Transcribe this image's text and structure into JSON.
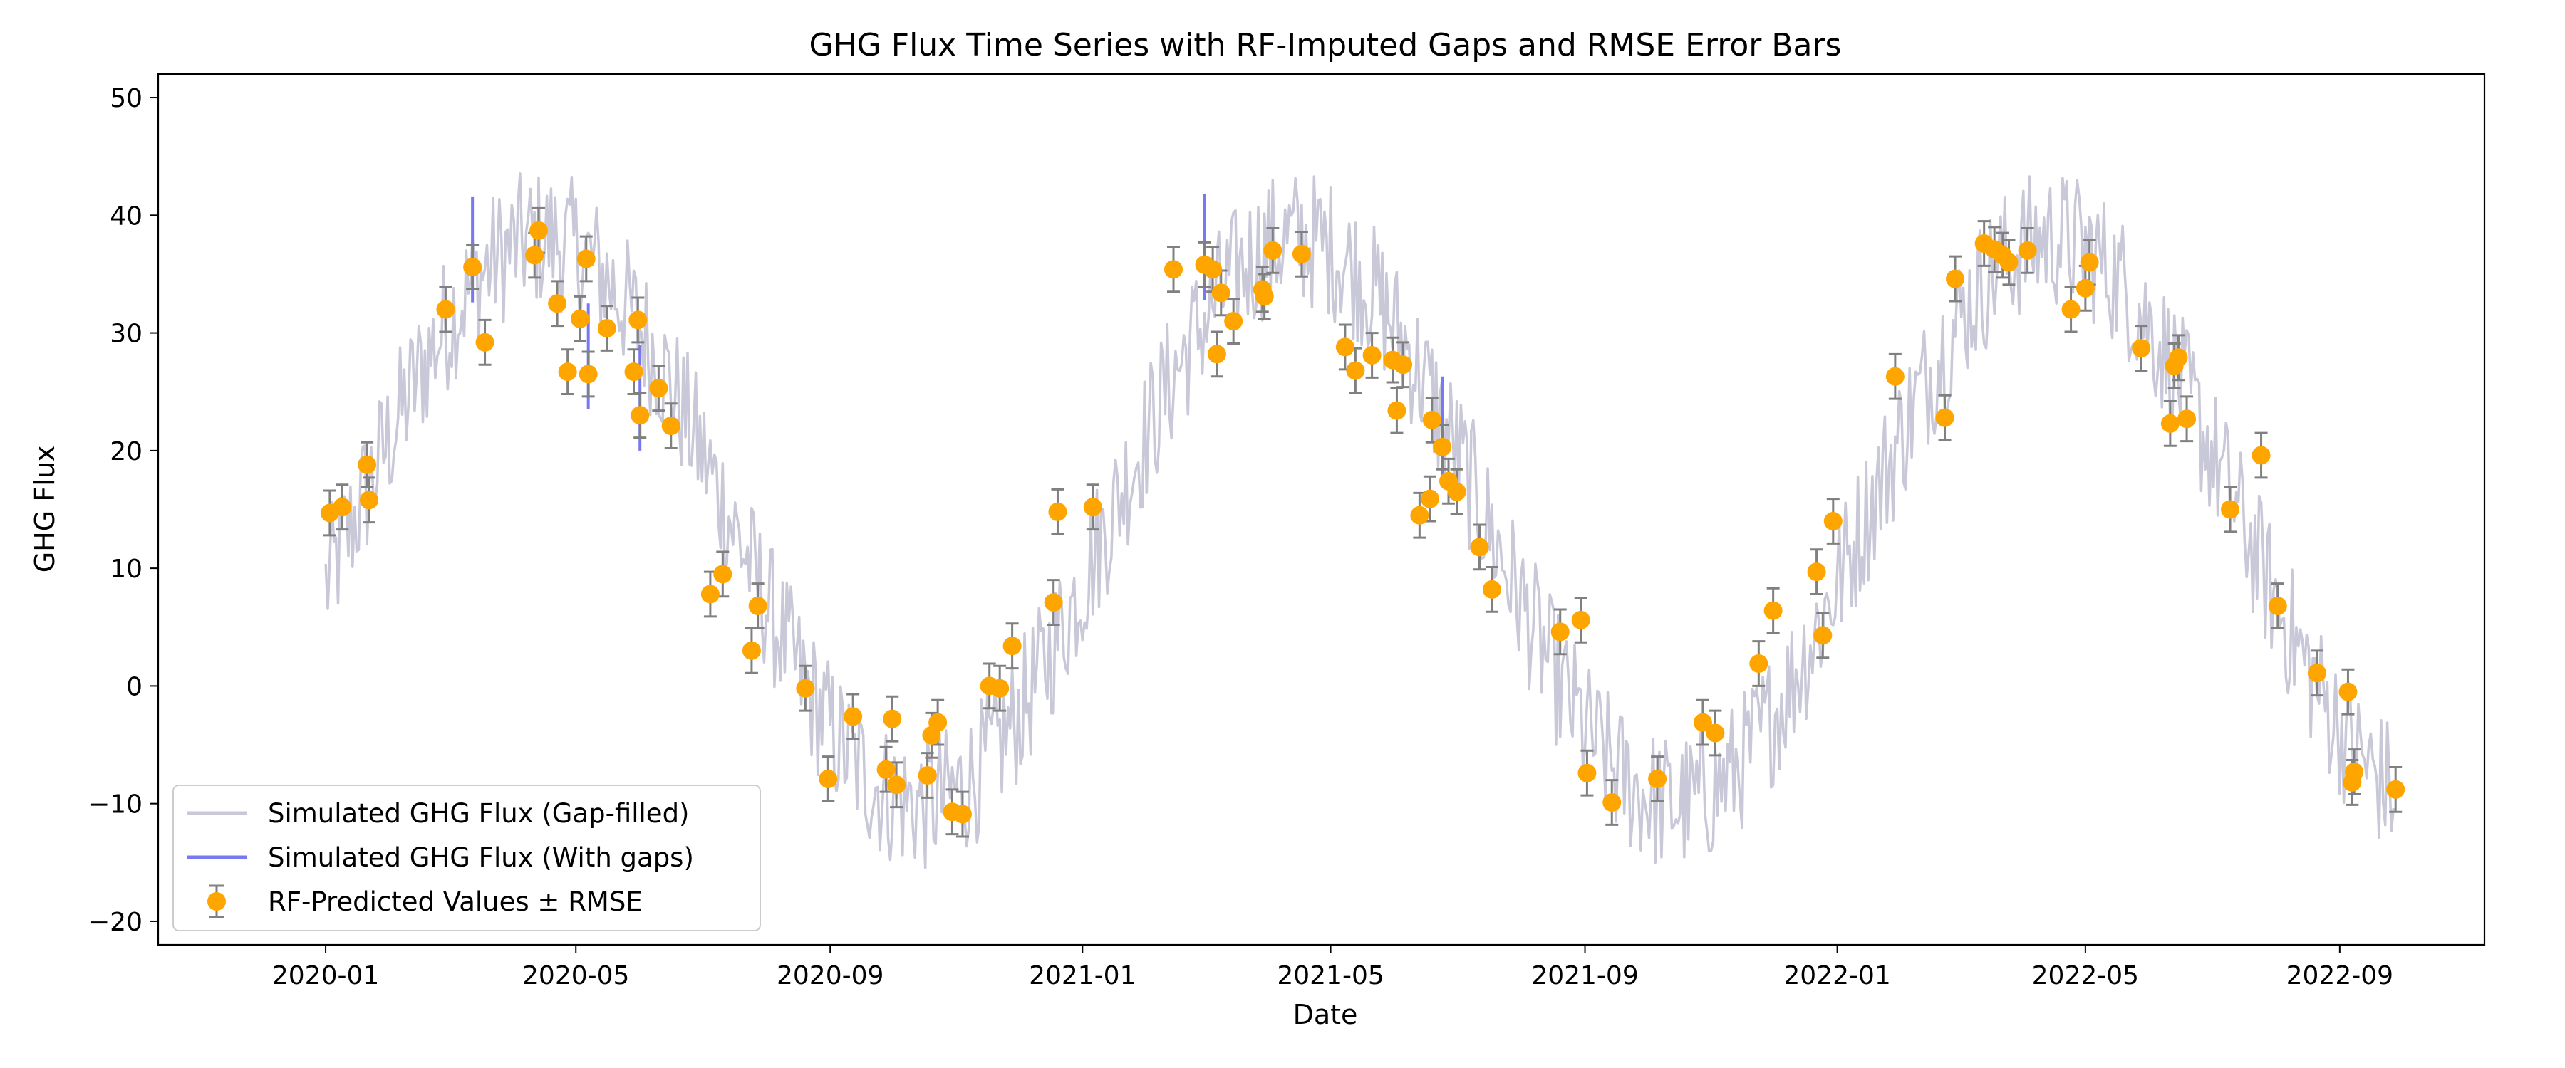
{
  "chart_data": {
    "type": "line",
    "title": "GHG Flux Time Series with RF-Imputed Gaps and RMSE Error Bars",
    "xlabel": "Date",
    "ylabel": "GHG Flux",
    "xlim": [
      "2019-10-12",
      "2022-11-10"
    ],
    "ylim": [
      -22,
      52
    ],
    "x_ticks": [
      "2020-01",
      "2020-05",
      "2020-09",
      "2021-01",
      "2021-05",
      "2021-09",
      "2022-01",
      "2022-05",
      "2022-09"
    ],
    "y_ticks": [
      -20,
      -10,
      0,
      10,
      20,
      30,
      40,
      50
    ],
    "legend_position": "lower-left",
    "colors": {
      "gap_filled": "#c8c8d8",
      "with_gaps": "#7878f0",
      "rf_points": "#ffa500",
      "error_bars": "#808080"
    },
    "series": [
      {
        "name": "Simulated GHG Flux (Gap-filled)",
        "kind": "line",
        "start_date": "2020-01-01",
        "end_date": "2022-09-27",
        "seasonal_mean": 14,
        "seasonal_amplitude": 24,
        "noise_amplitude": 6,
        "peak_month": "2021-04"
      },
      {
        "name": "Simulated GHG Flux (With gaps)",
        "kind": "line"
      },
      {
        "name": "RF-Predicted Values ± RMSE",
        "kind": "errorbar",
        "rmse": 1.9,
        "points": [
          [
            "2020-01-03",
            14.7
          ],
          [
            "2020-01-09",
            15.2
          ],
          [
            "2020-01-21",
            18.8
          ],
          [
            "2020-01-22",
            15.8
          ],
          [
            "2020-02-28",
            32.0
          ],
          [
            "2020-03-12",
            35.6
          ],
          [
            "2020-03-18",
            29.2
          ],
          [
            "2020-04-11",
            36.6
          ],
          [
            "2020-04-13",
            38.7
          ],
          [
            "2020-04-22",
            32.5
          ],
          [
            "2020-04-27",
            26.7
          ],
          [
            "2020-05-03",
            31.2
          ],
          [
            "2020-05-06",
            36.3
          ],
          [
            "2020-05-07",
            26.5
          ],
          [
            "2020-05-16",
            30.4
          ],
          [
            "2020-05-29",
            26.7
          ],
          [
            "2020-05-31",
            31.1
          ],
          [
            "2020-06-01",
            23.0
          ],
          [
            "2020-06-10",
            25.3
          ],
          [
            "2020-06-16",
            22.1
          ],
          [
            "2020-07-05",
            7.8
          ],
          [
            "2020-07-11",
            9.5
          ],
          [
            "2020-07-25",
            3.0
          ],
          [
            "2020-07-28",
            6.8
          ],
          [
            "2020-08-20",
            -0.2
          ],
          [
            "2020-08-31",
            -7.9
          ],
          [
            "2020-09-12",
            -2.6
          ],
          [
            "2020-09-28",
            -7.1
          ],
          [
            "2020-10-01",
            -2.8
          ],
          [
            "2020-10-03",
            -8.4
          ],
          [
            "2020-10-18",
            -7.6
          ],
          [
            "2020-10-20",
            -4.2
          ],
          [
            "2020-10-23",
            -3.1
          ],
          [
            "2020-10-30",
            -10.7
          ],
          [
            "2020-11-04",
            -10.9
          ],
          [
            "2020-11-17",
            0.0
          ],
          [
            "2020-11-22",
            -0.2
          ],
          [
            "2020-11-28",
            3.4
          ],
          [
            "2020-12-18",
            7.1
          ],
          [
            "2020-12-20",
            14.8
          ],
          [
            "2021-01-06",
            15.2
          ],
          [
            "2021-02-14",
            35.4
          ],
          [
            "2021-03-01",
            35.8
          ],
          [
            "2021-03-05",
            35.4
          ],
          [
            "2021-03-07",
            28.2
          ],
          [
            "2021-03-09",
            33.4
          ],
          [
            "2021-03-15",
            31.0
          ],
          [
            "2021-03-29",
            33.7
          ],
          [
            "2021-03-30",
            33.1
          ],
          [
            "2021-04-03",
            37.0
          ],
          [
            "2021-04-17",
            36.7
          ],
          [
            "2021-05-08",
            28.8
          ],
          [
            "2021-05-13",
            26.8
          ],
          [
            "2021-05-21",
            28.1
          ],
          [
            "2021-05-31",
            27.7
          ],
          [
            "2021-06-02",
            23.4
          ],
          [
            "2021-06-05",
            27.3
          ],
          [
            "2021-06-13",
            14.5
          ],
          [
            "2021-06-18",
            15.9
          ],
          [
            "2021-06-19",
            22.6
          ],
          [
            "2021-06-24",
            20.3
          ],
          [
            "2021-06-27",
            17.4
          ],
          [
            "2021-07-01",
            16.5
          ],
          [
            "2021-07-12",
            11.8
          ],
          [
            "2021-07-18",
            8.2
          ],
          [
            "2021-08-20",
            4.6
          ],
          [
            "2021-08-30",
            5.6
          ],
          [
            "2021-09-02",
            -7.4
          ],
          [
            "2021-09-14",
            -9.9
          ],
          [
            "2021-10-06",
            -7.9
          ],
          [
            "2021-10-28",
            -3.1
          ],
          [
            "2021-11-03",
            -4.0
          ],
          [
            "2021-11-24",
            1.9
          ],
          [
            "2021-12-01",
            6.4
          ],
          [
            "2021-12-22",
            9.7
          ],
          [
            "2021-12-25",
            4.3
          ],
          [
            "2021-12-30",
            14.0
          ],
          [
            "2022-01-29",
            26.3
          ],
          [
            "2022-02-22",
            22.8
          ],
          [
            "2022-02-27",
            34.6
          ],
          [
            "2022-03-13",
            37.6
          ],
          [
            "2022-03-18",
            37.1
          ],
          [
            "2022-03-22",
            36.6
          ],
          [
            "2022-03-25",
            36.0
          ],
          [
            "2022-04-03",
            37.0
          ],
          [
            "2022-04-24",
            32.0
          ],
          [
            "2022-05-01",
            33.8
          ],
          [
            "2022-05-03",
            36.0
          ],
          [
            "2022-05-28",
            28.7
          ],
          [
            "2022-06-11",
            22.3
          ],
          [
            "2022-06-13",
            27.2
          ],
          [
            "2022-06-15",
            27.9
          ],
          [
            "2022-06-19",
            22.7
          ],
          [
            "2022-07-10",
            15.0
          ],
          [
            "2022-07-25",
            19.6
          ],
          [
            "2022-08-02",
            6.8
          ],
          [
            "2022-08-21",
            1.1
          ],
          [
            "2022-09-05",
            -0.5
          ],
          [
            "2022-09-07",
            -8.2
          ],
          [
            "2022-09-08",
            -7.3
          ],
          [
            "2022-09-28",
            -8.8
          ]
        ]
      }
    ]
  }
}
